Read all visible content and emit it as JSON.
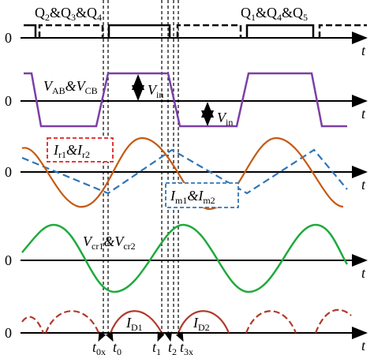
{
  "axes": [
    {
      "zero": "0",
      "t": "t"
    },
    {
      "zero": "0",
      "t": "t"
    },
    {
      "zero": "0",
      "t": "t"
    },
    {
      "zero": "0",
      "t": "t"
    },
    {
      "zero": "0",
      "t": "t"
    }
  ],
  "labels": {
    "gate_a": [
      "Q",
      "2",
      "&Q",
      "3",
      "&Q",
      "4"
    ],
    "gate_b": [
      "Q",
      "1",
      "&Q",
      "4",
      "&Q",
      "5"
    ],
    "v_ab": [
      "V",
      "AB",
      "&V",
      "CB"
    ],
    "vin_1": [
      "V",
      "in"
    ],
    "vin_2": [
      "V",
      "in"
    ],
    "i_r": [
      "I",
      "r1",
      "&I",
      "r2"
    ],
    "i_m": [
      "I",
      "m1",
      "&I",
      "m2"
    ],
    "v_cr": [
      "V",
      "cr1",
      "&V",
      "cr2"
    ],
    "i_d1": [
      "I",
      "D1"
    ],
    "i_d2": [
      "I",
      "D2"
    ],
    "t0x": [
      "t",
      "0x"
    ],
    "t0": [
      "t",
      "0"
    ],
    "t1": [
      "t",
      "1"
    ],
    "t2": [
      "t",
      "2"
    ],
    "t3x": [
      "t",
      "3x"
    ]
  }
}
